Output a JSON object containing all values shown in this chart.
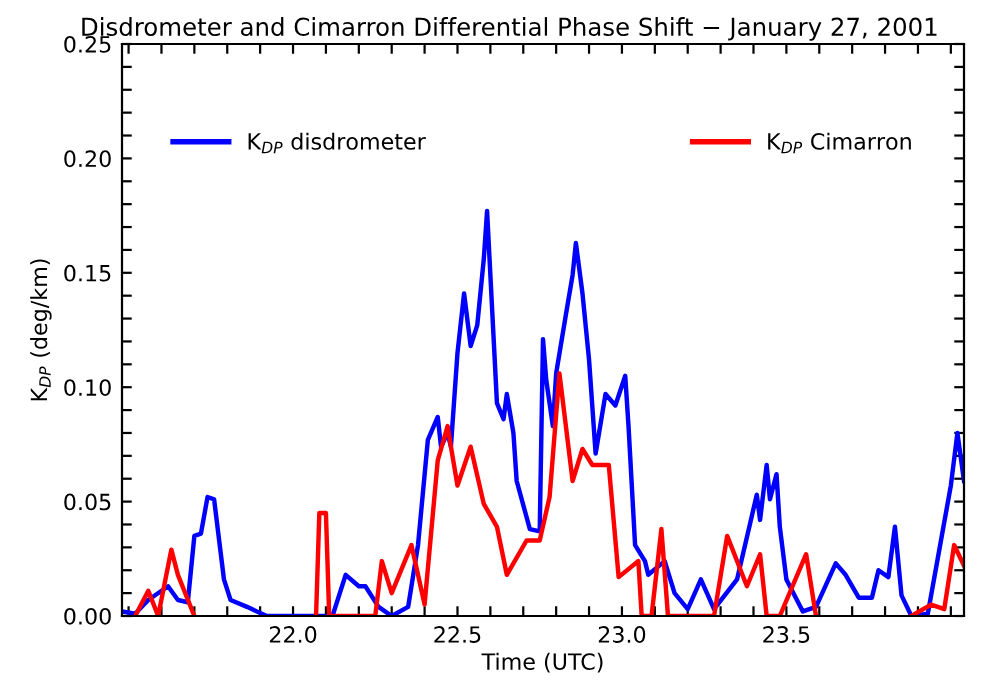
{
  "chart_data": {
    "type": "line",
    "title": "Disdrometer and Cimarron Differential Phase Shift − January 27, 2001",
    "xlabel": "Time (UTC)",
    "ylabel": "K$_{DP}$ (deg/km)",
    "xlim": [
      21.48,
      24.04
    ],
    "ylim": [
      0,
      0.25
    ],
    "xticks": [
      {
        "value": 21.5,
        "label": null
      },
      {
        "value": 21.6,
        "label": null
      },
      {
        "value": 21.7,
        "label": null
      },
      {
        "value": 21.8,
        "label": null
      },
      {
        "value": 21.9,
        "label": null
      },
      {
        "value": 22.0,
        "label": "22.0"
      },
      {
        "value": 22.1,
        "label": null
      },
      {
        "value": 22.2,
        "label": null
      },
      {
        "value": 22.3,
        "label": null
      },
      {
        "value": 22.4,
        "label": null
      },
      {
        "value": 22.5,
        "label": "22.5"
      },
      {
        "value": 22.6,
        "label": null
      },
      {
        "value": 22.7,
        "label": null
      },
      {
        "value": 22.8,
        "label": null
      },
      {
        "value": 22.9,
        "label": null
      },
      {
        "value": 23.0,
        "label": "23.0"
      },
      {
        "value": 23.1,
        "label": null
      },
      {
        "value": 23.2,
        "label": null
      },
      {
        "value": 23.3,
        "label": null
      },
      {
        "value": 23.4,
        "label": null
      },
      {
        "value": 23.5,
        "label": "23.5"
      },
      {
        "value": 23.6,
        "label": null
      },
      {
        "value": 23.7,
        "label": null
      },
      {
        "value": 23.8,
        "label": null
      },
      {
        "value": 23.9,
        "label": null
      },
      {
        "value": 24.0,
        "label": null
      }
    ],
    "yticks": [
      {
        "value": 0,
        "label": "0.00"
      },
      {
        "value": 0.01,
        "label": null
      },
      {
        "value": 0.02,
        "label": null
      },
      {
        "value": 0.03,
        "label": null
      },
      {
        "value": 0.04,
        "label": null
      },
      {
        "value": 0.05,
        "label": "0.05"
      },
      {
        "value": 0.06,
        "label": null
      },
      {
        "value": 0.07,
        "label": null
      },
      {
        "value": 0.08,
        "label": null
      },
      {
        "value": 0.09,
        "label": null
      },
      {
        "value": 0.1,
        "label": "0.10"
      },
      {
        "value": 0.11,
        "label": null
      },
      {
        "value": 0.12,
        "label": null
      },
      {
        "value": 0.13,
        "label": null
      },
      {
        "value": 0.14,
        "label": null
      },
      {
        "value": 0.15,
        "label": "0.15"
      },
      {
        "value": 0.16,
        "label": null
      },
      {
        "value": 0.17,
        "label": null
      },
      {
        "value": 0.18,
        "label": null
      },
      {
        "value": 0.19,
        "label": null
      },
      {
        "value": 0.2,
        "label": "0.20"
      },
      {
        "value": 0.21,
        "label": null
      },
      {
        "value": 0.22,
        "label": null
      },
      {
        "value": 0.23,
        "label": null
      },
      {
        "value": 0.24,
        "label": null
      },
      {
        "value": 0.25,
        "label": "0.25"
      }
    ],
    "grid": false,
    "legend": "top",
    "marker": "none",
    "line_style": "solid",
    "series": [
      {
        "name": "K$_{DP}$ disdrometer",
        "color": "#0000ff",
        "x": [
          21.48,
          21.52,
          21.56,
          21.62,
          21.65,
          21.68,
          21.7,
          21.72,
          21.74,
          21.76,
          21.79,
          21.81,
          21.86,
          21.92,
          22.12,
          22.16,
          22.2,
          22.22,
          22.26,
          22.3,
          22.35,
          22.38,
          22.41,
          22.44,
          22.45,
          22.47,
          22.48,
          22.5,
          22.52,
          22.54,
          22.56,
          22.58,
          22.59,
          22.61,
          22.62,
          22.64,
          22.65,
          22.67,
          22.68,
          22.72,
          22.75,
          22.76,
          22.77,
          22.79,
          22.8,
          22.83,
          22.85,
          22.86,
          22.88,
          22.9,
          22.92,
          22.95,
          22.98,
          23.01,
          23.02,
          23.04,
          23.07,
          23.08,
          23.13,
          23.16,
          23.2,
          23.24,
          23.28,
          23.35,
          23.41,
          23.42,
          23.44,
          23.45,
          23.47,
          23.48,
          23.5,
          23.55,
          23.59,
          23.65,
          23.68,
          23.72,
          23.76,
          23.78,
          23.81,
          23.83,
          23.85,
          23.88,
          23.93,
          23.97,
          24.0,
          24.02,
          24.04
        ],
        "values": [
          0.002,
          0.001,
          0.007,
          0.013,
          0.007,
          0.006,
          0.035,
          0.036,
          0.052,
          0.051,
          0.016,
          0.007,
          0.004,
          0.0,
          0.0,
          0.018,
          0.013,
          0.013,
          0.004,
          0.0,
          0.004,
          0.031,
          0.077,
          0.087,
          0.074,
          0.08,
          0.074,
          0.115,
          0.141,
          0.118,
          0.127,
          0.156,
          0.177,
          0.121,
          0.093,
          0.086,
          0.097,
          0.08,
          0.059,
          0.038,
          0.037,
          0.121,
          0.103,
          0.083,
          0.106,
          0.132,
          0.149,
          0.163,
          0.141,
          0.112,
          0.071,
          0.097,
          0.092,
          0.105,
          0.083,
          0.031,
          0.024,
          0.018,
          0.024,
          0.01,
          0.003,
          0.016,
          0.003,
          0.016,
          0.053,
          0.042,
          0.066,
          0.051,
          0.062,
          0.039,
          0.016,
          0.002,
          0.004,
          0.023,
          0.018,
          0.008,
          0.008,
          0.02,
          0.017,
          0.039,
          0.009,
          0.0,
          0.001,
          0.033,
          0.057,
          0.08,
          0.059
        ]
      },
      {
        "name": "K$_{DP}$ Cimarron",
        "color": "#ff0000",
        "x": [
          21.52,
          21.56,
          21.59,
          21.63,
          21.65,
          21.7,
          21.8,
          22.07,
          22.08,
          22.1,
          22.11,
          22.25,
          22.27,
          22.3,
          22.36,
          22.4,
          22.44,
          22.47,
          22.48,
          22.5,
          22.54,
          22.58,
          22.62,
          22.65,
          22.71,
          22.75,
          22.78,
          22.81,
          22.85,
          22.88,
          22.91,
          22.96,
          22.99,
          23.05,
          23.06,
          23.09,
          23.12,
          23.14,
          23.28,
          23.32,
          23.38,
          23.42,
          23.44,
          23.48,
          23.56,
          23.59,
          23.7,
          23.88,
          23.94,
          23.98,
          24.01,
          24.04
        ],
        "values": [
          0.0,
          0.011,
          0.0,
          0.029,
          0.018,
          0.0,
          null,
          0.0,
          0.045,
          0.045,
          0.0,
          0.0,
          0.024,
          0.01,
          0.031,
          0.005,
          0.068,
          0.083,
          0.074,
          0.057,
          0.074,
          0.049,
          0.039,
          0.018,
          0.033,
          0.033,
          0.052,
          0.106,
          0.059,
          0.073,
          0.066,
          0.066,
          0.017,
          0.024,
          0.0,
          0.0,
          0.038,
          0.0,
          0.0,
          0.035,
          0.013,
          0.027,
          0.0,
          0.0,
          0.027,
          0.0,
          null,
          0.0,
          0.005,
          0.003,
          0.031,
          0.022
        ]
      }
    ]
  }
}
